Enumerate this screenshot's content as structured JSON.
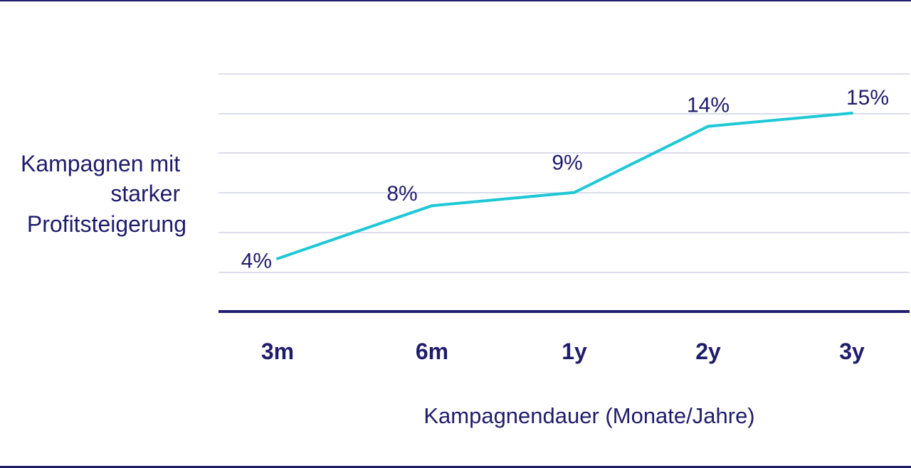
{
  "chart_data": {
    "type": "line",
    "categories": [
      "3m",
      "6m",
      "1y",
      "2y",
      "3y"
    ],
    "series": [
      {
        "values": [
          4,
          8,
          9,
          14,
          15
        ],
        "data_labels": [
          "4%",
          "8%",
          "9%",
          "14%",
          "15%"
        ]
      }
    ],
    "ylabel": "Kampagnen mit starker Profitsteigerung",
    "ylabel_lines": [
      "Kampagnen mit",
      "starker",
      "Profitsteigerung"
    ],
    "xlabel": "Kampagnendauer (Monate/Jahre)",
    "ylim": [
      0,
      18
    ],
    "grid": true,
    "colors": {
      "line": "#1ec8d6",
      "text": "#1f1c6b",
      "axis": "#1f1c6b",
      "grid": "#cfd0e6",
      "frame": "#1f1c6b"
    }
  }
}
